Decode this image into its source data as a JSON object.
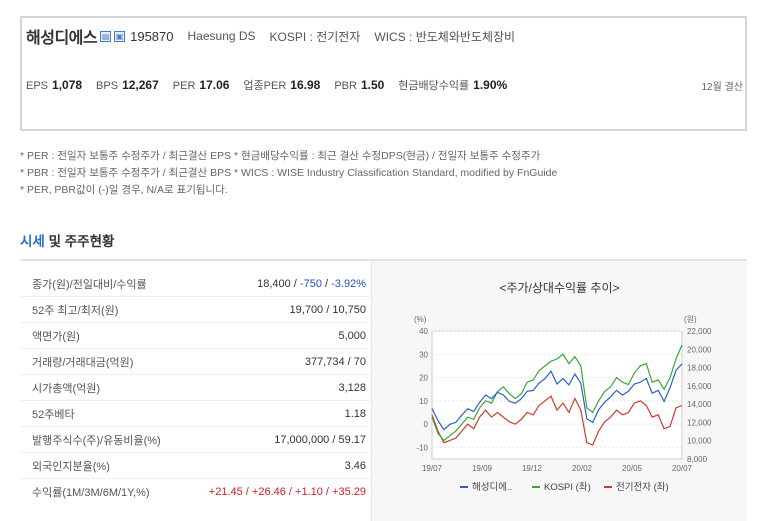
{
  "header": {
    "name": "해성디에스",
    "badge1": "▤",
    "badge2": "▣",
    "code": "195870",
    "eng_name": "Haesung DS",
    "market": "KOSPI : 전기전자",
    "wics": "WICS : 반도체와반도체장비"
  },
  "metrics": [
    {
      "label": "EPS",
      "value": "1,078"
    },
    {
      "label": "BPS",
      "value": "12,267"
    },
    {
      "label": "PER",
      "value": "17.06"
    },
    {
      "label": "업종PER",
      "value": "16.98"
    },
    {
      "label": "PBR",
      "value": "1.50"
    },
    {
      "label": "현금배당수익률",
      "value": "1.90%"
    }
  ],
  "settlement": "12월 결산",
  "notes": [
    "* PER : 전일자 보통주 수정주가 / 최근결산 EPS * 현금배당수익률 : 최근 결산 수정DPS(현금) / 전일자 보통주 수정주가",
    "* PBR : 전일자 보통주 수정주가 / 최근결산 BPS * WICS : WISE Industry Classification Standard, modified by FnGuide",
    "* PER, PBR값이 (-)일 경우, N/A로 표기됩니다."
  ],
  "section": {
    "accent": "시세",
    "rest": " 및 주주현황"
  },
  "table": {
    "rows": [
      {
        "label": "종가(원)/전일대비/수익률",
        "value_main": "18,400 / ",
        "value_a": "-750",
        "value_sep": " / ",
        "value_b": "-3.92%"
      },
      {
        "label": "52주 최고/최저(원)",
        "value": "19,700 / 10,750"
      },
      {
        "label": "액면가(원)",
        "value": "5,000"
      },
      {
        "label": "거래량/거래대금(억원)",
        "value": "377,734 / 70"
      },
      {
        "label": "시가총액(억원)",
        "value": "3,128"
      },
      {
        "label": "52주베타",
        "value": "1.18"
      },
      {
        "label": "발행주식수(주)/유동비율(%)",
        "value": "17,000,000 / 59.17"
      },
      {
        "label": "외국인지분율(%)",
        "value": "3.46"
      },
      {
        "label": "수익률(1M/3M/6M/1Y,%)",
        "value": "+21.45 / +26.46 / +1.10 / +35.29"
      }
    ]
  },
  "chart_data": {
    "type": "line",
    "title": "<주가/상대수익률 추이>",
    "left_unit": "(%)",
    "right_unit": "(원)",
    "x_ticks": [
      "19/07",
      "19/09",
      "19/12",
      "20/02",
      "20/05",
      "20/07"
    ],
    "y_left_ticks": [
      40,
      30,
      20,
      10,
      0,
      -10
    ],
    "y_right_ticks": [
      "22,000",
      "20,000",
      "18,000",
      "16,000",
      "14,000",
      "12,000",
      "10,000",
      "8,000"
    ],
    "ylim_left": [
      -15,
      40
    ],
    "ylim_right": [
      8000,
      22000
    ],
    "series": [
      {
        "name": "해성디에..",
        "color": "#2a5fc4",
        "axis": "right",
        "values": [
          13500,
          12200,
          11200,
          11800,
          12000,
          12800,
          13500,
          13200,
          14200,
          15000,
          14600,
          15300,
          15000,
          14300,
          14100,
          14600,
          15400,
          15500,
          16300,
          16800,
          17600,
          16200,
          16800,
          16100,
          17300,
          16300,
          12400,
          12000,
          13400,
          14200,
          14800,
          15500,
          15000,
          15400,
          16200,
          16400,
          16800,
          15200,
          15500,
          14300,
          15800,
          17700,
          18400
        ]
      },
      {
        "name": "KOSPI (좌)",
        "color": "#3aa53a",
        "axis": "left",
        "values": [
          3,
          -4,
          -7,
          -5,
          -3,
          0,
          3,
          2,
          7,
          10,
          9,
          14,
          16,
          13,
          11,
          13,
          18,
          19,
          23,
          25,
          27,
          28,
          30,
          26,
          29,
          25,
          7,
          5,
          10,
          14,
          16,
          20,
          18,
          17,
          22,
          25,
          26,
          18,
          19,
          15,
          20,
          28,
          34
        ]
      },
      {
        "name": "전기전자 (좌)",
        "color": "#d23a2c",
        "axis": "left",
        "values": [
          4,
          -3,
          -8,
          -7,
          -6,
          -3,
          0,
          -2,
          3,
          6,
          3,
          5,
          3,
          1,
          0,
          2,
          5,
          4,
          8,
          10,
          12,
          6,
          9,
          5,
          11,
          6,
          -8,
          -9,
          -3,
          1,
          3,
          6,
          4,
          5,
          9,
          10,
          8,
          3,
          4,
          -2,
          -1,
          7,
          8
        ]
      }
    ]
  }
}
